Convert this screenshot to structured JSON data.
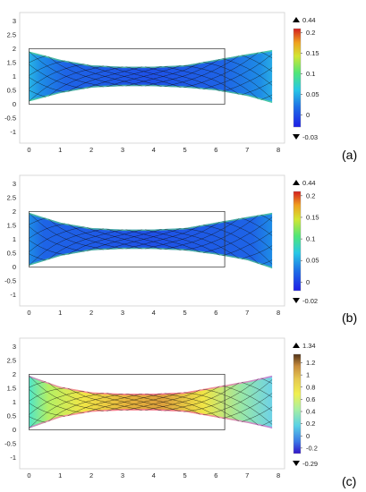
{
  "figure": {
    "panels": [
      {
        "id": "a",
        "label": "(a)",
        "colormap": "rainbow",
        "range_max_label": "0.44",
        "range_min_label": "-0.03",
        "colorbar_ticks": [
          "0.2",
          "0.15",
          "0.1",
          "0.05",
          "0"
        ],
        "colorbar_values": [
          0.2,
          0.15,
          0.1,
          0.05,
          0
        ],
        "cmin": -0.03,
        "cmax": 0.21
      },
      {
        "id": "b",
        "label": "(b)",
        "colormap": "rainbow",
        "range_max_label": "0.44",
        "range_min_label": "-0.02",
        "colorbar_ticks": [
          "0.2",
          "0.15",
          "0.1",
          "0.05",
          "0"
        ],
        "colorbar_values": [
          0.2,
          0.15,
          0.1,
          0.05,
          0
        ],
        "cmin": -0.02,
        "cmax": 0.21
      },
      {
        "id": "c",
        "label": "(c)",
        "colormap": "wave",
        "range_max_label": "1.34",
        "range_min_label": "-0.29",
        "colorbar_ticks": [
          "1.2",
          "1",
          "0.8",
          "0.6",
          "0.4",
          "0.2",
          "0",
          "-0.2"
        ],
        "colorbar_values": [
          1.2,
          1,
          0.8,
          0.6,
          0.4,
          0.2,
          0,
          -0.2
        ],
        "cmin": -0.29,
        "cmax": 1.34
      }
    ]
  },
  "chart_data": [
    {
      "type": "heatmap",
      "subtype": "deformed-mesh-surface",
      "title": "",
      "xlabel": "",
      "ylabel": "",
      "xlim": [
        -0.3,
        8.2
      ],
      "ylim": [
        -1.4,
        3.3
      ],
      "x_ticks": [
        "0",
        "1",
        "2",
        "3",
        "4",
        "5",
        "6",
        "7",
        "8"
      ],
      "y_ticks": [
        "3",
        "2.5",
        "2",
        "1.5",
        "1",
        "0.5",
        "0",
        "-0.5",
        "-1"
      ],
      "reference_rectangle": {
        "x": [
          0,
          6.28
        ],
        "y": [
          0,
          2
        ]
      },
      "shape_top": [
        [
          0,
          1.9
        ],
        [
          1,
          1.6
        ],
        [
          2,
          1.4
        ],
        [
          3,
          1.35
        ],
        [
          4,
          1.35
        ],
        [
          5,
          1.4
        ],
        [
          6,
          1.6
        ],
        [
          7,
          1.8
        ],
        [
          7.8,
          1.95
        ]
      ],
      "shape_bottom": [
        [
          0,
          0.1
        ],
        [
          1,
          0.4
        ],
        [
          2,
          0.6
        ],
        [
          3,
          0.65
        ],
        [
          4,
          0.65
        ],
        [
          5,
          0.6
        ],
        [
          6,
          0.5
        ],
        [
          7,
          0.3
        ],
        [
          7.8,
          0.05
        ]
      ],
      "colorbar": {
        "min": -0.03,
        "max": 0.44,
        "ticks": [
          0.2,
          0.15,
          0.1,
          0.05,
          0
        ]
      }
    },
    {
      "type": "heatmap",
      "subtype": "deformed-mesh-surface",
      "title": "",
      "xlabel": "",
      "ylabel": "",
      "xlim": [
        -0.3,
        8.2
      ],
      "ylim": [
        -1.4,
        3.3
      ],
      "x_ticks": [
        "0",
        "1",
        "2",
        "3",
        "4",
        "5",
        "6",
        "7",
        "8"
      ],
      "y_ticks": [
        "3",
        "2.5",
        "2",
        "1.5",
        "1",
        "0.5",
        "0",
        "-0.5",
        "-1"
      ],
      "reference_rectangle": {
        "x": [
          0,
          6.28
        ],
        "y": [
          0,
          2
        ]
      },
      "shape_top": [
        [
          0,
          1.95
        ],
        [
          1,
          1.6
        ],
        [
          2,
          1.4
        ],
        [
          3,
          1.35
        ],
        [
          4,
          1.35
        ],
        [
          5,
          1.4
        ],
        [
          6,
          1.6
        ],
        [
          7,
          1.8
        ],
        [
          7.8,
          1.95
        ]
      ],
      "shape_bottom": [
        [
          0,
          0.05
        ],
        [
          1,
          0.4
        ],
        [
          2,
          0.6
        ],
        [
          3,
          0.65
        ],
        [
          4,
          0.65
        ],
        [
          5,
          0.6
        ],
        [
          6,
          0.45
        ],
        [
          7,
          0.25
        ],
        [
          7.8,
          -0.05
        ]
      ],
      "colorbar": {
        "min": -0.02,
        "max": 0.44,
        "ticks": [
          0.2,
          0.15,
          0.1,
          0.05,
          0
        ]
      }
    },
    {
      "type": "heatmap",
      "subtype": "deformed-mesh-surface",
      "title": "",
      "xlabel": "",
      "ylabel": "",
      "xlim": [
        -0.3,
        8.2
      ],
      "ylim": [
        -1.4,
        3.3
      ],
      "x_ticks": [
        "0",
        "1",
        "2",
        "3",
        "4",
        "5",
        "6",
        "7",
        "8"
      ],
      "y_ticks": [
        "3",
        "2.5",
        "2",
        "1.5",
        "1",
        "0.5",
        "0",
        "-0.5",
        "-1"
      ],
      "reference_rectangle": {
        "x": [
          0,
          6.28
        ],
        "y": [
          0,
          2
        ]
      },
      "shape_top": [
        [
          0,
          1.95
        ],
        [
          1,
          1.55
        ],
        [
          2,
          1.35
        ],
        [
          3,
          1.3
        ],
        [
          4,
          1.3
        ],
        [
          5,
          1.35
        ],
        [
          6,
          1.55
        ],
        [
          7,
          1.75
        ],
        [
          7.8,
          1.95
        ]
      ],
      "shape_bottom": [
        [
          0,
          0.05
        ],
        [
          1,
          0.45
        ],
        [
          2,
          0.65
        ],
        [
          3,
          0.7
        ],
        [
          4,
          0.7
        ],
        [
          5,
          0.65
        ],
        [
          6,
          0.45
        ],
        [
          7,
          0.25
        ],
        [
          7.8,
          0.05
        ]
      ],
      "colorbar": {
        "min": -0.29,
        "max": 1.34,
        "ticks": [
          1.2,
          1,
          0.8,
          0.6,
          0.4,
          0.2,
          0,
          -0.2
        ]
      }
    }
  ]
}
